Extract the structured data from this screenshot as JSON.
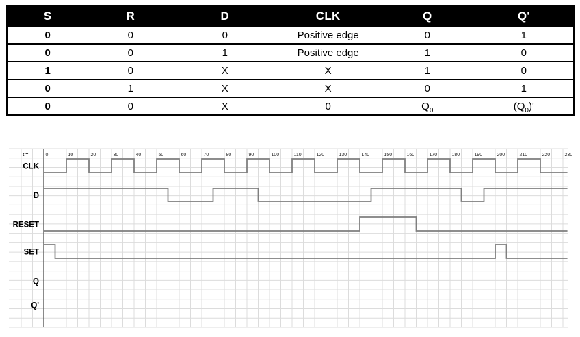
{
  "truth_table": {
    "headers": [
      "S",
      "R",
      "D",
      "CLK",
      "Q",
      "Q'"
    ],
    "rows": [
      [
        "0",
        "0",
        "0",
        "Positive edge",
        "0",
        "1"
      ],
      [
        "0",
        "0",
        "1",
        "Positive edge",
        "1",
        "0"
      ],
      [
        "1",
        "0",
        "X",
        "X",
        "1",
        "0"
      ],
      [
        "0",
        "1",
        "X",
        "X",
        "0",
        "1"
      ],
      [
        "0",
        "0",
        "X",
        "0",
        {
          "pre": "Q",
          "sub": "0",
          "post": ""
        },
        {
          "pre": "(Q",
          "sub": "0",
          "post": ")'"
        }
      ]
    ],
    "header_bg": "#000000",
    "header_color": "#ffffff"
  },
  "chart_data": {
    "type": "digital-timing",
    "title": "",
    "x_axis_label": "t =",
    "x_ticks": [
      0,
      10,
      20,
      30,
      40,
      50,
      60,
      70,
      80,
      90,
      100,
      110,
      120,
      130,
      140,
      150,
      160,
      170,
      180,
      190,
      200,
      210,
      220,
      230
    ],
    "x_range": [
      0,
      232
    ],
    "grid": true,
    "signals": [
      {
        "name": "CLK",
        "initial": 0,
        "toggle_times": [
          10,
          20,
          30,
          40,
          50,
          60,
          70,
          80,
          90,
          100,
          110,
          120,
          130,
          140,
          150,
          160,
          170,
          180,
          190,
          200,
          210,
          220
        ]
      },
      {
        "name": "D",
        "initial": 1,
        "toggle_times": [
          55,
          75,
          95,
          145,
          185,
          195
        ]
      },
      {
        "name": "RESET",
        "initial": 0,
        "toggle_times": [
          140,
          165
        ]
      },
      {
        "name": "SET",
        "initial": 1,
        "toggle_times": [
          5,
          200,
          205
        ]
      },
      {
        "name": "Q",
        "initial": null,
        "toggle_times": []
      },
      {
        "name": "Q'",
        "initial": null,
        "toggle_times": []
      }
    ],
    "colors": {
      "waveform": "#7f7f7f",
      "grid": "#dcdcdc",
      "axis": "#595959",
      "tick_text": "#262626",
      "label_text": "#000000"
    }
  }
}
